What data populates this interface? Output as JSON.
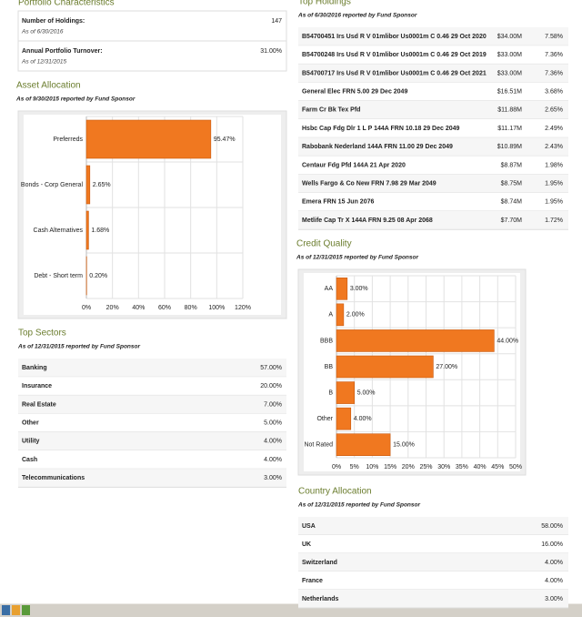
{
  "portfolio_characteristics": {
    "title": "Portfolio Characteristics",
    "rows": [
      {
        "label": "Number of Holdings:",
        "as_of": "As of 6/30/2016",
        "value": "147"
      },
      {
        "label": "Annual Portfolio Turnover:",
        "as_of": "As of 12/31/2015",
        "value": "31.00%"
      }
    ]
  },
  "asset_allocation": {
    "title": "Asset Allocation",
    "subtitle": "As of 9/30/2015 reported by Fund Sponsor",
    "chart": {
      "type": "bar",
      "categories": [
        "Preferreds",
        "Bonds - Corp General",
        "Cash Alternatives",
        "Debt - Short term"
      ],
      "values": [
        95.47,
        2.65,
        1.68,
        0.2
      ],
      "value_labels": [
        "95.47%",
        "2.65%",
        "1.68%",
        "0.20%"
      ],
      "color": "#f07820",
      "xlim": [
        0,
        120
      ],
      "xticks": [
        {
          "value": 0,
          "label": "0%"
        },
        {
          "value": 20,
          "label": "20%"
        },
        {
          "value": 40,
          "label": "40%"
        },
        {
          "value": 60,
          "label": "60%"
        },
        {
          "value": 80,
          "label": "80%"
        },
        {
          "value": 100,
          "label": "100%"
        },
        {
          "value": 120,
          "label": "120%"
        }
      ],
      "grid": true
    }
  },
  "top_sectors": {
    "title": "Top Sectors",
    "subtitle": "As of 12/31/2015 reported by Fund Sponsor",
    "rows": [
      [
        "Banking",
        "57.00%"
      ],
      [
        "Insurance",
        "20.00%"
      ],
      [
        "Real Estate",
        "7.00%"
      ],
      [
        "Other",
        "5.00%"
      ],
      [
        "Utility",
        "4.00%"
      ],
      [
        "Cash",
        "4.00%"
      ],
      [
        "Telecommunications",
        "3.00%"
      ]
    ]
  },
  "top_holdings": {
    "title": "Top Holdings",
    "subtitle": "As of 6/30/2016 reported by Fund Sponsor",
    "rows": [
      [
        "B54700451 Irs Usd R V 01mlibor Us0001m C 0.46 29 Oct 2020",
        "$34.00M",
        "7.58%"
      ],
      [
        "B54700248 Irs Usd R V 01mlibor Us0001m C 0.46 29 Oct 2019",
        "$33.00M",
        "7.36%"
      ],
      [
        "B54700717 Irs Usd R V 01mlibor Us0001m C 0.46 29 Oct 2021",
        "$33.00M",
        "7.36%"
      ],
      [
        "General Elec FRN 5.00 29 Dec 2049",
        "$16.51M",
        "3.68%"
      ],
      [
        "Farm Cr Bk Tex Pfd",
        "$11.88M",
        "2.65%"
      ],
      [
        "Hsbc Cap Fdg Dlr 1 L P 144A FRN 10.18 29 Dec 2049",
        "$11.17M",
        "2.49%"
      ],
      [
        "Rabobank Nederland 144A FRN 11.00 29 Dec 2049",
        "$10.89M",
        "2.43%"
      ],
      [
        "Centaur Fdg Pfd 144A 21 Apr 2020",
        "$8.87M",
        "1.98%"
      ],
      [
        "Wells Fargo & Co New FRN 7.98 29 Mar 2049",
        "$8.75M",
        "1.95%"
      ],
      [
        "Emera FRN 15 Jun 2076",
        "$8.74M",
        "1.95%"
      ],
      [
        "Metlife Cap Tr X 144A FRN 9.25 08 Apr 2068",
        "$7.70M",
        "1.72%"
      ]
    ]
  },
  "credit_quality": {
    "title": "Credit Quality",
    "subtitle": "As of 12/31/2015 reported by Fund Sponsor",
    "chart": {
      "type": "bar",
      "categories": [
        "AA",
        "A",
        "BBB",
        "BB",
        "B",
        "Other",
        "Not Rated"
      ],
      "values": [
        3,
        2,
        44,
        27,
        5,
        4,
        15
      ],
      "value_labels": [
        "3.00%",
        "2.00%",
        "44.00%",
        "27.00%",
        "5.00%",
        "4.00%",
        "15.00%"
      ],
      "color": "#f07820",
      "xlim": [
        0,
        50
      ],
      "xticks": [
        {
          "value": 0,
          "label": "0%"
        },
        {
          "value": 5,
          "label": "5%"
        },
        {
          "value": 10,
          "label": "10%"
        },
        {
          "value": 15,
          "label": "15%"
        },
        {
          "value": 20,
          "label": "20%"
        },
        {
          "value": 25,
          "label": "25%"
        },
        {
          "value": 30,
          "label": "30%"
        },
        {
          "value": 35,
          "label": "35%"
        },
        {
          "value": 40,
          "label": "40%"
        },
        {
          "value": 45,
          "label": "45%"
        },
        {
          "value": 50,
          "label": "50%"
        }
      ],
      "grid": true
    }
  },
  "country_allocation": {
    "title": "Country Allocation",
    "subtitle": "As of 12/31/2015 reported by Fund Sponsor",
    "rows": [
      [
        "USA",
        "58.00%"
      ],
      [
        "UK",
        "16.00%"
      ],
      [
        "Switzerland",
        "4.00%"
      ],
      [
        "France",
        "4.00%"
      ],
      [
        "Netherlands",
        "3.00%"
      ]
    ]
  }
}
